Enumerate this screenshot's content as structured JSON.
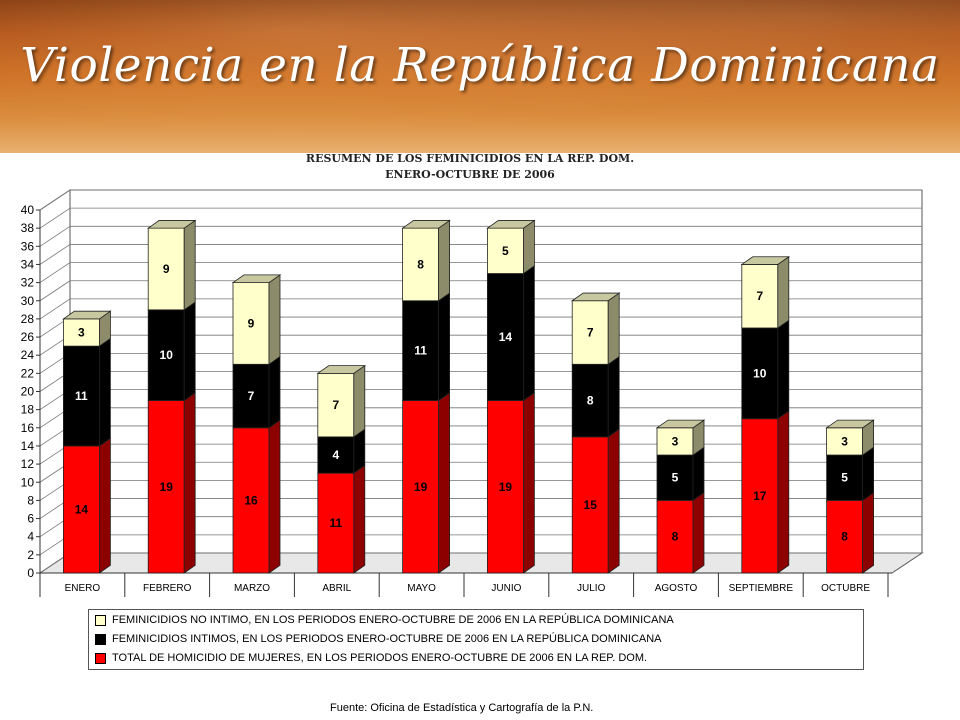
{
  "slide": {
    "title": "Violencia en la República Dominicana",
    "source": "Fuente: Oficina de Estadística y Cartografía de la P.N."
  },
  "chart_data": {
    "type": "bar",
    "stacked": true,
    "title": "RESUMEN DE LOS FEMINICIDIOS EN LA REP. DOM.",
    "subtitle": "ENERO-OCTUBRE DE 2006",
    "categories": [
      "ENERO",
      "FEBRERO",
      "MARZO",
      "ABRIL",
      "MAYO",
      "JUNIO",
      "JULIO",
      "AGOSTO",
      "SEPTIEMBRE",
      "OCTUBRE"
    ],
    "series": [
      {
        "name": "TOTAL DE HOMICIDIO DE  MUJERES, EN LOS PERIODOS ENERO-OCTUBRE DE 2006 EN LA REP. DOM.",
        "color": "#ff0000",
        "values": [
          14,
          19,
          16,
          11,
          19,
          19,
          15,
          8,
          17,
          8
        ]
      },
      {
        "name": "FEMINICIDIOS INTIMOS, EN LOS PERIODOS ENERO-OCTUBRE DE 2006 EN LA REPÚBLICA DOMINICANA",
        "color": "#000000",
        "values": [
          11,
          10,
          7,
          4,
          11,
          14,
          8,
          5,
          10,
          5
        ]
      },
      {
        "name": "FEMINICIDIOS NO INTIMO, EN LOS PERIODOS ENERO-OCTUBRE DE 2006 EN LA REPÚBLICA DOMINICANA",
        "color": "#ffffcc",
        "values": [
          3,
          9,
          9,
          7,
          8,
          5,
          7,
          3,
          7,
          3
        ]
      }
    ],
    "ylim": [
      0,
      40
    ],
    "yticks": [
      "0",
      "2",
      "4",
      "6",
      "8",
      "10",
      "12",
      "14",
      "16",
      "18",
      "20",
      "22",
      "24",
      "26",
      "28",
      "30",
      "32",
      "34",
      "36",
      "38",
      "40"
    ],
    "grid": true,
    "legend_position": "bottom"
  }
}
